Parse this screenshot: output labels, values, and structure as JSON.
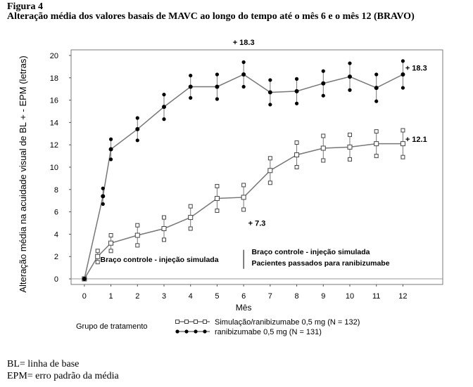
{
  "figure": {
    "label": "Figura 4",
    "title": "Alteração média dos valores basais de MAVC ao longo do tempo até o mês 6 e o mês 12 (BRAVO)"
  },
  "footnotes": [
    "BL= linha de base",
    "EPM= erro padrão da média"
  ],
  "chart_data": {
    "type": "line",
    "xlabel": "Mês",
    "ylabel": "Alteração média na acuidade visual de BL + - EPM (letras)",
    "x": [
      0,
      1,
      2,
      3,
      4,
      5,
      6,
      7,
      8,
      9,
      10,
      11,
      12
    ],
    "ylim": [
      -0.5,
      20.5
    ],
    "xlim": [
      -0.5,
      13.5
    ],
    "yticks": [
      0,
      2,
      4,
      6,
      8,
      10,
      12,
      14,
      16,
      18,
      20
    ],
    "xticks": [
      0,
      1,
      2,
      3,
      4,
      5,
      6,
      7,
      8,
      9,
      10,
      11,
      12
    ],
    "series": [
      {
        "name": "Simulação/ranibizumabe 0,5 mg (N = 132)",
        "marker": "square-open",
        "x": [
          0,
          0.5,
          1,
          2,
          3,
          4,
          5,
          6,
          7,
          8,
          9,
          10,
          11,
          12
        ],
        "values": [
          0,
          2.0,
          3.2,
          3.9,
          4.5,
          5.5,
          7.2,
          7.3,
          9.7,
          11.1,
          11.7,
          11.8,
          12.1,
          12.1
        ],
        "err": [
          0,
          0.5,
          0.7,
          0.9,
          1.0,
          1.0,
          1.1,
          1.1,
          1.1,
          1.1,
          1.1,
          1.1,
          1.1,
          1.2
        ]
      },
      {
        "name": "ranibizumabe 0,5 mg (N = 131)",
        "marker": "circle-filled",
        "x": [
          0,
          0.7,
          1,
          2,
          3,
          4,
          5,
          6,
          7,
          8,
          9,
          10,
          11,
          12
        ],
        "values": [
          0,
          7.4,
          11.6,
          13.4,
          15.4,
          17.2,
          17.2,
          18.3,
          16.7,
          16.8,
          17.5,
          18.1,
          17.1,
          18.3
        ],
        "err": [
          0,
          0.7,
          0.9,
          1.0,
          1.1,
          1.0,
          1.1,
          1.1,
          1.1,
          1.1,
          1.1,
          1.2,
          1.2,
          1.2
        ]
      }
    ],
    "annotations": [
      {
        "text": "+ 18.3",
        "x": 6,
        "y": 21.2
      },
      {
        "text": "+ 18.3",
        "x": 12.5,
        "y": 18.9
      },
      {
        "text": "+ 12.1",
        "x": 12.5,
        "y": 12.5
      },
      {
        "text": "+ 7.3",
        "x": 6.5,
        "y": 5.0
      }
    ],
    "phase_labels": {
      "left": "Braço controle - injeção simulada",
      "right_line1": "Braço controle - injeção simulada",
      "right_line2": "Pacientes passados para ranibizumabe",
      "divider_x": 6
    },
    "legend": {
      "title": "Grupo de tratamento",
      "position": "bottom"
    }
  }
}
